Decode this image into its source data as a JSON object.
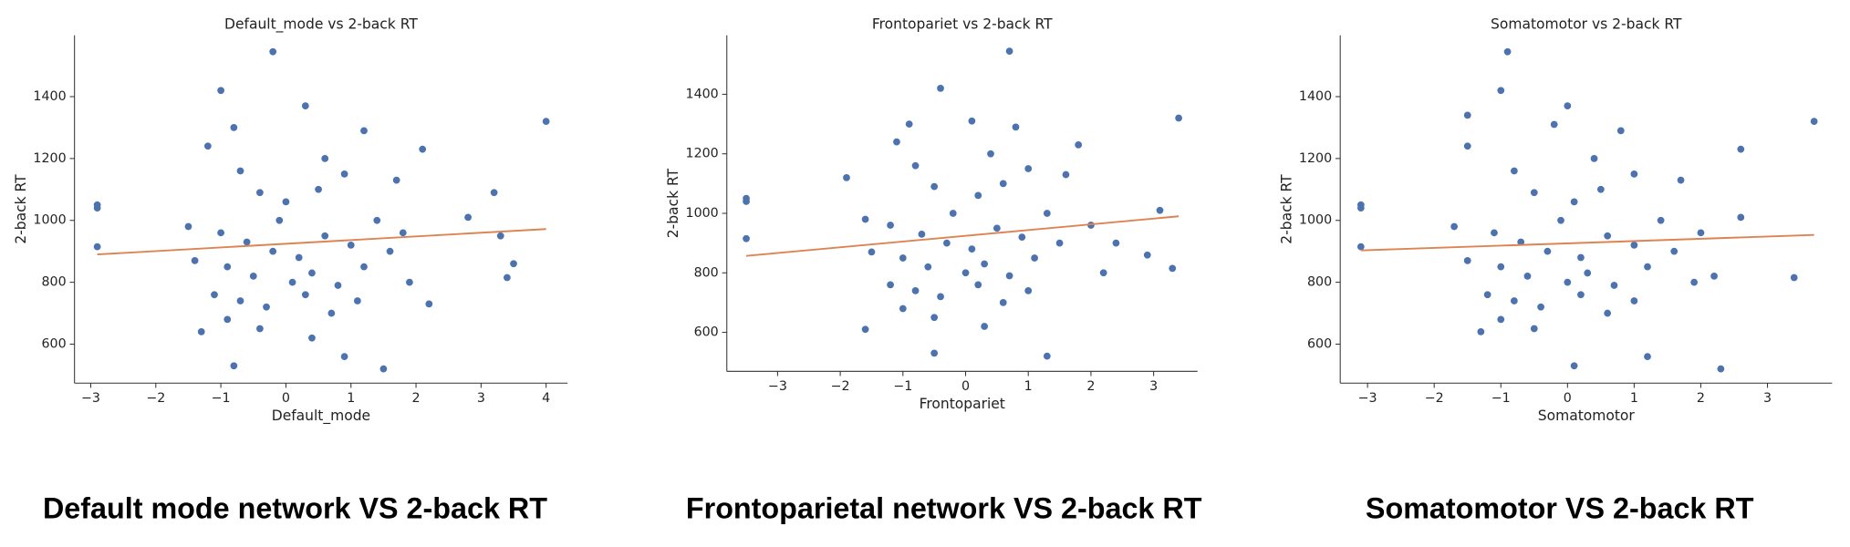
{
  "chart_data": [
    {
      "type": "scatter",
      "title": "Default_mode vs 2-back RT",
      "xlabel": "Default_mode",
      "ylabel": "2-back RT",
      "xlim": [
        -3.25,
        4.33
      ],
      "ylim": [
        474,
        1598
      ],
      "xticks": [
        {
          "value": -3,
          "label": "−3"
        },
        {
          "value": -2,
          "label": "−2"
        },
        {
          "value": -1,
          "label": "−1"
        },
        0,
        1,
        2,
        3,
        4
      ],
      "yticks": [
        600,
        800,
        1000,
        1200,
        1400
      ],
      "series": [
        {
          "color": "#4c72b0",
          "x": [
            -2.9,
            -2.9,
            -2.9,
            -0.2,
            -1,
            4,
            1.5,
            -0.8,
            3.2,
            3.5,
            3.4,
            2.8,
            3.3,
            2.1,
            0.3,
            1.2,
            -1.2,
            -0.7,
            -0.4,
            0,
            0.5,
            0.9,
            -1.5,
            -1,
            -0.6,
            -0.2,
            0.2,
            0.6,
            1,
            1.4,
            1.8,
            -1.4,
            -0.9,
            -0.5,
            0.1,
            0.4,
            0.8,
            1.2,
            1.9,
            -1.1,
            -0.7,
            -0.3,
            0.3,
            0.7,
            1.1,
            -0.9,
            -0.4,
            0.4,
            0.9,
            -1.3,
            1.6,
            2.2,
            -0.1,
            0.6,
            -0.8,
            1.7
          ],
          "values": [
            1050,
            1040,
            915,
            1545,
            1420,
            1320,
            520,
            530,
            1090,
            860,
            815,
            1010,
            950,
            1230,
            1370,
            1290,
            1240,
            1160,
            1090,
            1060,
            1100,
            1150,
            980,
            960,
            930,
            900,
            880,
            950,
            920,
            1000,
            960,
            870,
            850,
            820,
            800,
            830,
            790,
            850,
            800,
            760,
            740,
            720,
            760,
            700,
            740,
            680,
            650,
            620,
            560,
            640,
            900,
            730,
            1000,
            1200,
            1300,
            1130
          ]
        }
      ],
      "trendline": {
        "color": "#dd8452",
        "x": [
          -2.9,
          4
        ],
        "values": [
          890,
          972
        ]
      }
    },
    {
      "type": "scatter",
      "title": "Frontopariet vs 2-back RT",
      "xlabel": "Frontopariet",
      "ylabel": "2-back RT",
      "xlim": [
        -3.81,
        3.7
      ],
      "ylim": [
        469,
        1598
      ],
      "xticks": [
        {
          "value": -3,
          "label": "−3"
        },
        {
          "value": -2,
          "label": "−2"
        },
        {
          "value": -1,
          "label": "−1"
        },
        0,
        1,
        2,
        3
      ],
      "yticks": [
        600,
        800,
        1000,
        1200,
        1400
      ],
      "series": [
        {
          "color": "#4c72b0",
          "x": [
            -3.5,
            -3.5,
            -3.5,
            0.7,
            -0.4,
            3.4,
            1.3,
            -0.5,
            3.1,
            3.3,
            2.9,
            1.8,
            0.1,
            0.8,
            -1.1,
            -0.8,
            -0.5,
            0.2,
            0.6,
            1,
            -1.6,
            -1.2,
            -0.7,
            -0.3,
            0.1,
            0.5,
            0.9,
            1.3,
            2,
            -1.5,
            -1,
            -0.6,
            0,
            0.3,
            0.7,
            1.1,
            2.2,
            -1.2,
            -0.8,
            -0.4,
            0.2,
            0.6,
            1,
            -1,
            -0.5,
            0.3,
            -1.6,
            -1.9,
            1.5,
            2.4,
            -0.2,
            0.4,
            -0.9,
            1.6
          ],
          "values": [
            1050,
            1040,
            915,
            1545,
            1420,
            1320,
            520,
            530,
            1010,
            815,
            860,
            1230,
            1310,
            1290,
            1240,
            1160,
            1090,
            1060,
            1100,
            1150,
            980,
            960,
            930,
            900,
            880,
            950,
            920,
            1000,
            960,
            870,
            850,
            820,
            800,
            830,
            790,
            850,
            800,
            760,
            740,
            720,
            760,
            700,
            740,
            680,
            650,
            620,
            610,
            1120,
            900,
            900,
            1000,
            1200,
            1300,
            1130
          ]
        }
      ],
      "trendline": {
        "color": "#dd8452",
        "x": [
          -3.5,
          3.4
        ],
        "values": [
          857,
          990
        ]
      }
    },
    {
      "type": "scatter",
      "title": "Somatomotor vs 2-back RT",
      "xlabel": "Somatomotor",
      "ylabel": "2-back RT",
      "xlim": [
        -3.41,
        3.97
      ],
      "ylim": [
        474,
        1598
      ],
      "xticks": [
        {
          "value": -3,
          "label": "−3"
        },
        {
          "value": -2,
          "label": "−2"
        },
        {
          "value": -1,
          "label": "−1"
        },
        0,
        1,
        2,
        3
      ],
      "yticks": [
        600,
        800,
        1000,
        1200,
        1400
      ],
      "series": [
        {
          "color": "#4c72b0",
          "x": [
            -3.1,
            -3.1,
            -3.1,
            -0.9,
            -1,
            3.7,
            2.3,
            3.4,
            2.6,
            -0.2,
            0,
            0.8,
            -1.5,
            -0.8,
            -0.5,
            0.1,
            0.5,
            1,
            -1.7,
            -1.1,
            -0.7,
            -0.3,
            0.2,
            0.6,
            1,
            1.4,
            2,
            -1.5,
            -1,
            -0.6,
            0,
            0.3,
            0.7,
            1.2,
            1.9,
            -1.2,
            -0.8,
            -0.4,
            0.2,
            0.6,
            1,
            -1,
            -0.5,
            0.1,
            1.2,
            -1.3,
            1.6,
            2.2,
            -0.1,
            0.4,
            -1.5,
            1.7,
            2.6
          ],
          "values": [
            1050,
            1040,
            915,
            1545,
            1420,
            1320,
            520,
            815,
            1230,
            1310,
            1370,
            1290,
            1240,
            1160,
            1090,
            1060,
            1100,
            1150,
            980,
            960,
            930,
            900,
            880,
            950,
            920,
            1000,
            960,
            870,
            850,
            820,
            800,
            830,
            790,
            850,
            800,
            760,
            740,
            720,
            760,
            700,
            740,
            680,
            650,
            530,
            560,
            640,
            900,
            820,
            1000,
            1200,
            1340,
            1130,
            1010
          ]
        }
      ],
      "trendline": {
        "color": "#dd8452",
        "x": [
          -3.1,
          3.7
        ],
        "values": [
          903,
          953
        ]
      }
    }
  ],
  "captions": [
    "Default mode network VS 2-back RT",
    "Frontoparietal network VS 2-back RT",
    "Somatomotor VS 2-back RT"
  ]
}
